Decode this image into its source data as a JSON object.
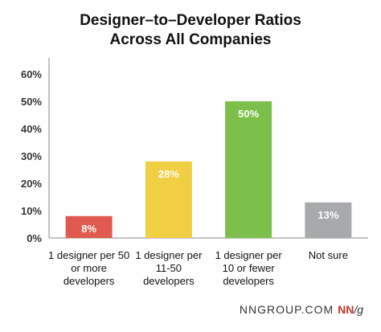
{
  "chart_data": {
    "type": "bar",
    "title": [
      "Designer–to–Developer Ratios",
      "Across All Companies"
    ],
    "categories": [
      [
        "1 designer per 50",
        "or more",
        "developers"
      ],
      [
        "1 designer per",
        "11-50",
        "developers"
      ],
      [
        "1 designer per",
        "10 or fewer",
        "developers"
      ],
      [
        "Not sure"
      ]
    ],
    "values": [
      8,
      28,
      50,
      13
    ],
    "data_labels": [
      "8%",
      "28%",
      "50%",
      "13%"
    ],
    "colors": [
      "#e05a4f",
      "#f0cf45",
      "#7cc04b",
      "#a7a9ab"
    ],
    "yticks": [
      0,
      10,
      20,
      30,
      40,
      50,
      60
    ],
    "ytick_labels": [
      "0%",
      "10%",
      "20%",
      "30%",
      "40%",
      "50%",
      "60%"
    ],
    "ylim": [
      0,
      60
    ],
    "grid": false,
    "xlabel": "",
    "ylabel": ""
  },
  "footer": {
    "site": "NNGROUP.COM",
    "logo_nn": "NN",
    "logo_slash": "/",
    "logo_g": "g"
  }
}
